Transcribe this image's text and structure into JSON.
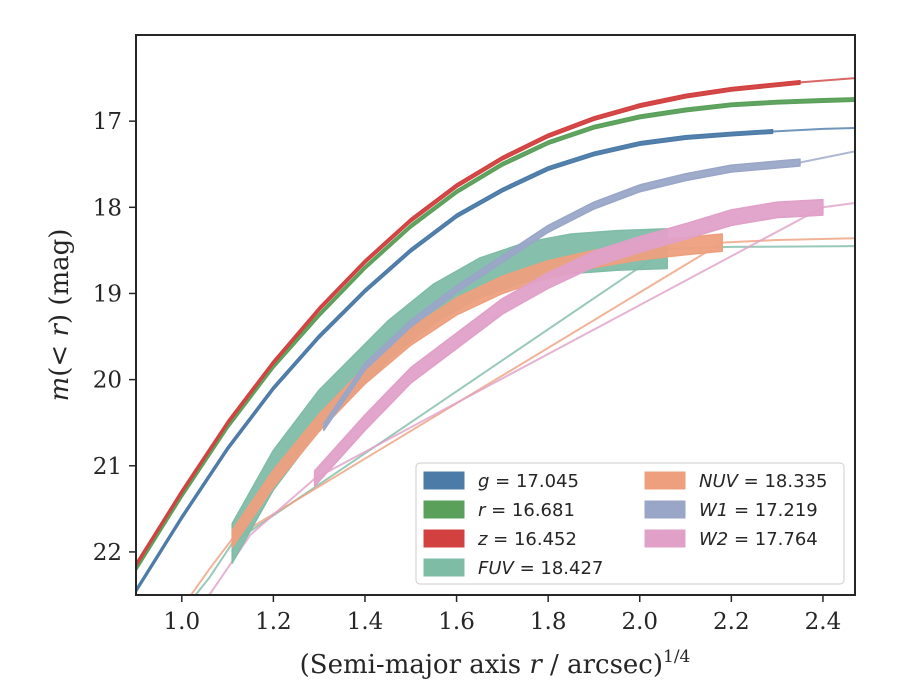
{
  "chart_data": {
    "type": "line",
    "xlabel": "(Semi-major axis r / arcsec)^{1/4}",
    "xlabel_parts": [
      "(Semi-major axis ",
      "r",
      " / arcsec)",
      "1/4"
    ],
    "ylabel": "m(< r) (mag)",
    "ylabel_parts": [
      "m",
      "(< ",
      "r",
      ") (mag)"
    ],
    "xlim": [
      0.9,
      2.47
    ],
    "ylim": [
      22.5,
      16.0
    ],
    "y_inverted": true,
    "xticks": [
      1.0,
      1.2,
      1.4,
      1.6,
      1.8,
      2.0,
      2.2,
      2.4
    ],
    "xtick_labels": [
      "1.0",
      "1.2",
      "1.4",
      "1.6",
      "1.8",
      "2.0",
      "2.2",
      "2.4"
    ],
    "yticks": [
      17,
      18,
      19,
      20,
      21,
      22
    ],
    "ytick_labels": [
      "17",
      "18",
      "19",
      "20",
      "21",
      "22"
    ],
    "grid": false,
    "legend_position": "bottom-right",
    "legend_columns": 2,
    "series": [
      {
        "name": "g = 17.045",
        "band": "g",
        "value": "17.045",
        "color": "#4c7ba8",
        "observed": {
          "x": [
            0.9,
            1.0,
            1.1,
            1.2,
            1.3,
            1.4,
            1.5,
            1.6,
            1.7,
            1.8,
            1.9,
            2.0,
            2.1,
            2.2,
            2.29
          ],
          "y": [
            22.45,
            21.6,
            20.8,
            20.1,
            19.5,
            18.97,
            18.5,
            18.1,
            17.8,
            17.55,
            17.38,
            17.26,
            17.19,
            17.15,
            17.12
          ],
          "halfwidth": 0.02
        },
        "model": {
          "x": [
            2.29,
            2.4,
            2.47
          ],
          "y": [
            17.12,
            17.09,
            17.08
          ]
        }
      },
      {
        "name": "r = 16.681",
        "band": "r",
        "value": "16.681",
        "color": "#5aa05a",
        "observed": {
          "x": [
            0.9,
            1.0,
            1.1,
            1.2,
            1.3,
            1.4,
            1.5,
            1.6,
            1.7,
            1.8,
            1.9,
            2.0,
            2.1,
            2.2,
            2.3,
            2.4,
            2.47
          ],
          "y": [
            22.2,
            21.35,
            20.55,
            19.85,
            19.25,
            18.7,
            18.22,
            17.82,
            17.5,
            17.25,
            17.07,
            16.95,
            16.87,
            16.81,
            16.78,
            16.76,
            16.75
          ],
          "halfwidth": 0.02
        },
        "model": {
          "x": [],
          "y": []
        }
      },
      {
        "name": "z = 16.452",
        "band": "z",
        "value": "16.452",
        "color": "#d24040",
        "observed": {
          "x": [
            0.9,
            1.0,
            1.1,
            1.2,
            1.3,
            1.4,
            1.5,
            1.6,
            1.7,
            1.8,
            1.9,
            2.0,
            2.1,
            2.2,
            2.35
          ],
          "y": [
            22.15,
            21.3,
            20.5,
            19.8,
            19.18,
            18.63,
            18.15,
            17.75,
            17.43,
            17.17,
            16.97,
            16.82,
            16.71,
            16.63,
            16.55
          ],
          "halfwidth": 0.02
        },
        "model": {
          "x": [
            2.35,
            2.47
          ],
          "y": [
            16.55,
            16.5
          ]
        }
      },
      {
        "name": "FUV = 18.427",
        "band": "FUV",
        "value": "18.427",
        "color": "#7fbca6",
        "observed": {
          "x": [
            1.11,
            1.2,
            1.3,
            1.45,
            1.55,
            1.65,
            1.75,
            1.85,
            1.95,
            2.06
          ],
          "y": [
            21.9,
            21.05,
            20.35,
            19.55,
            19.12,
            18.82,
            18.64,
            18.54,
            18.5,
            18.48
          ],
          "halfwidth": 0.23
        },
        "model": {
          "x": [
            1.03,
            1.06,
            1.11,
            2.06,
            2.2,
            2.47
          ],
          "y": [
            22.5,
            22.3,
            21.9,
            18.48,
            18.46,
            18.45
          ]
        }
      },
      {
        "name": "NUV = 18.335",
        "band": "NUV",
        "value": "18.335",
        "color": "#eea07e",
        "observed": {
          "x": [
            1.11,
            1.2,
            1.3,
            1.4,
            1.5,
            1.6,
            1.7,
            1.8,
            1.9,
            2.0,
            2.1,
            2.18
          ],
          "y": [
            21.85,
            21.15,
            20.5,
            19.95,
            19.5,
            19.15,
            18.9,
            18.72,
            18.6,
            18.51,
            18.45,
            18.41
          ],
          "halfwidth": 0.1
        },
        "model": {
          "x": [
            1.02,
            1.06,
            1.11,
            2.18,
            2.3,
            2.47
          ],
          "y": [
            22.5,
            22.2,
            21.85,
            18.41,
            18.38,
            18.36
          ]
        }
      },
      {
        "name": "W1 = 17.219",
        "band": "W1",
        "value": "17.219",
        "color": "#9aa6c8",
        "observed": {
          "x": [
            1.31,
            1.4,
            1.5,
            1.6,
            1.7,
            1.8,
            1.9,
            2.0,
            2.1,
            2.2,
            2.35
          ],
          "y": [
            20.55,
            19.85,
            19.35,
            18.95,
            18.6,
            18.25,
            17.98,
            17.78,
            17.65,
            17.55,
            17.48
          ],
          "halfwidth": 0.04
        },
        "model": {
          "x": [
            2.35,
            2.47
          ],
          "y": [
            17.48,
            17.35
          ]
        }
      },
      {
        "name": "W2 = 17.764",
        "band": "W2",
        "value": "17.764",
        "color": "#e0a0c8",
        "observed": {
          "x": [
            1.29,
            1.4,
            1.5,
            1.6,
            1.7,
            1.8,
            1.9,
            2.0,
            2.1,
            2.2,
            2.3,
            2.4
          ],
          "y": [
            21.15,
            20.5,
            19.95,
            19.55,
            19.15,
            18.85,
            18.6,
            18.43,
            18.28,
            18.12,
            18.03,
            18.0
          ],
          "halfwidth": 0.09
        },
        "model": {
          "x": [
            1.06,
            1.15,
            1.29,
            2.4,
            2.47
          ],
          "y": [
            22.5,
            21.8,
            21.15,
            18.0,
            17.95
          ]
        }
      }
    ]
  }
}
